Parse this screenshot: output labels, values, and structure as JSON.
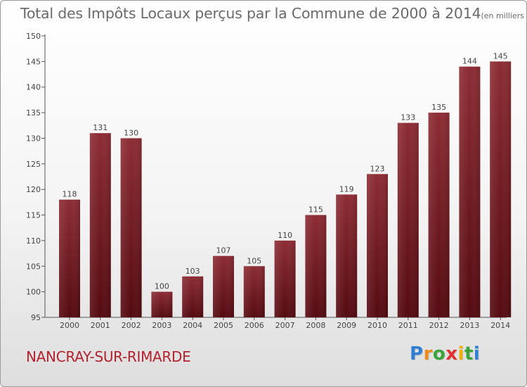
{
  "title": "Total des Impôts Locaux perçus par la Commune de 2000 à 2014",
  "title_unit": "(en milliers d'€)",
  "commune": "NANCRAY-SUR-RIMARDE",
  "logo": {
    "text": "Proxiti",
    "letters": [
      "P",
      "r",
      "o",
      "x",
      "i",
      "t",
      "i"
    ],
    "colors": [
      "#2f7fd3",
      "#f08a1c",
      "#3aa33a",
      "#e03030",
      "#f0b000",
      "#3aa33a",
      "#2f7fd3"
    ]
  },
  "colors": {
    "bar_top": "#8d2c34",
    "bar_bottom": "#540a10",
    "axis": "#555555",
    "text": "#444444",
    "title": "#6a6a6a",
    "commune": "#b2222f"
  },
  "chart_data": {
    "type": "bar",
    "title": "Total des Impôts Locaux perçus par la Commune de 2000 à 2014",
    "xlabel": "",
    "ylabel": "(en milliers d'€)",
    "categories": [
      "2000",
      "2001",
      "2002",
      "2003",
      "2004",
      "2005",
      "2006",
      "2007",
      "2008",
      "2009",
      "2010",
      "2011",
      "2012",
      "2013",
      "2014"
    ],
    "values": [
      118,
      131,
      130,
      100,
      103,
      107,
      105,
      110,
      115,
      119,
      123,
      133,
      135,
      144,
      145
    ],
    "ylim": [
      95,
      150
    ],
    "yticks": [
      95,
      100,
      105,
      110,
      115,
      120,
      125,
      130,
      135,
      140,
      145,
      150
    ],
    "grid": false
  }
}
